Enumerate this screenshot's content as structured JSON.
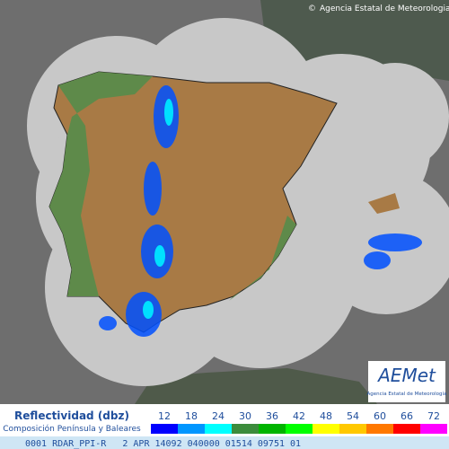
{
  "copyright": "Agencia Estatal de Meteorologia",
  "logo": {
    "brand": "AEMet",
    "caption": "Agencia Estatal de Meteorología"
  },
  "legend": {
    "title": "Reflectividad (dbz)",
    "subtitle": "Composición Península y Baleares",
    "ticks": [
      12,
      18,
      24,
      30,
      36,
      42,
      48,
      54,
      60,
      66,
      72
    ],
    "colors": [
      "#0000ff",
      "#0096ff",
      "#00ffff",
      "#3c8c3c",
      "#00b400",
      "#00ff00",
      "#ffff00",
      "#ffc800",
      "#ff7800",
      "#ff0000",
      "#ff00ff"
    ]
  },
  "status_line": "0001 RDAR_PPI-R   2 APR 14092 040000 01514 09751 01"
}
